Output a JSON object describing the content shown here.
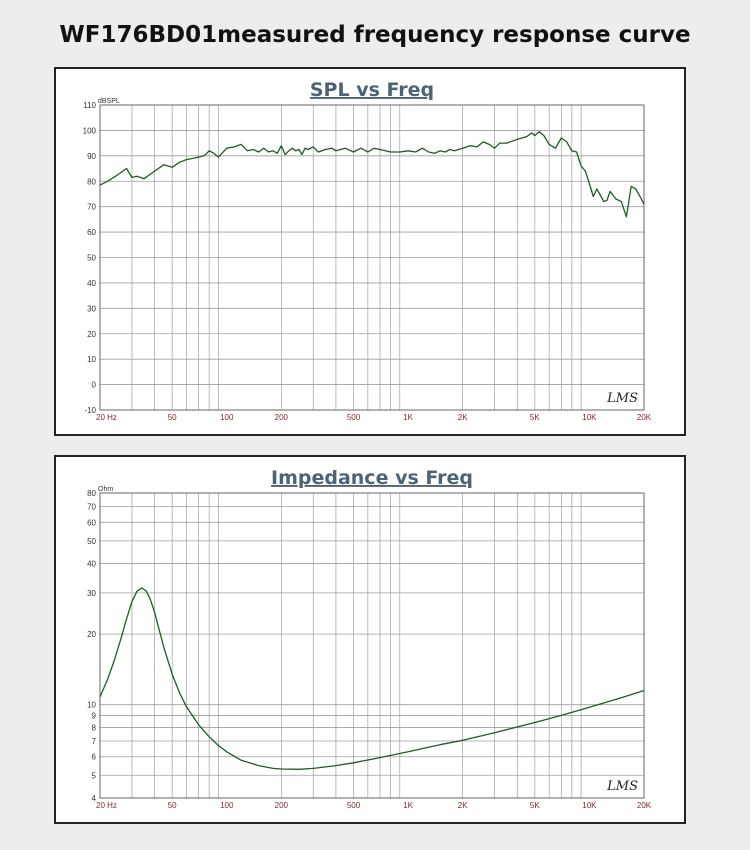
{
  "page_title": "WF176BD01measured frequency response curve",
  "colors": {
    "curve": "#1f5c24",
    "title": "#4f6377",
    "axis_label": "#7a2b2b",
    "grid": "#9e9e9e"
  },
  "chart_data": [
    {
      "type": "line",
      "title": "SPL vs Freq",
      "ylabel": "dBSPL",
      "xlabel": "",
      "xscale": "log",
      "xlim": [
        20,
        20000
      ],
      "ylim": [
        -10,
        110
      ],
      "x_ticks": [
        20,
        50,
        100,
        200,
        500,
        1000,
        2000,
        5000,
        10000,
        20000
      ],
      "x_tick_labels": [
        "20 Hz",
        "50",
        "100",
        "200",
        "500",
        "1K",
        "2K",
        "5K",
        "10K",
        "20K"
      ],
      "y_ticks": [
        -10,
        0,
        10,
        20,
        30,
        40,
        50,
        60,
        70,
        80,
        90,
        100,
        110
      ],
      "y_tick_labels": [
        "-10",
        "0",
        "10",
        "20",
        "30",
        "40",
        "50",
        "60",
        "70",
        "80",
        "90",
        "100",
        "110"
      ],
      "watermark": "LMS",
      "grid": true,
      "series": [
        {
          "x": [
            20,
            22,
            25,
            28,
            30,
            32,
            35,
            40,
            45,
            50,
            55,
            60,
            65,
            70,
            75,
            80,
            85,
            90,
            100,
            110,
            120,
            130,
            140,
            150,
            160,
            170,
            180,
            190,
            200,
            210,
            220,
            230,
            240,
            250,
            260,
            270,
            280,
            300,
            320,
            350,
            380,
            400,
            450,
            500,
            550,
            600,
            650,
            700,
            750,
            800,
            900,
            1000,
            1100,
            1200,
            1300,
            1400,
            1500,
            1600,
            1700,
            1800,
            2000,
            2200,
            2400,
            2600,
            2800,
            3000,
            3200,
            3500,
            4000,
            4500,
            4800,
            5000,
            5300,
            5600,
            6000,
            6500,
            7000,
            7500,
            8000,
            8500,
            9000,
            9500,
            10000,
            10500,
            11000,
            12000,
            12500,
            13000,
            14000,
            15000,
            16000,
            17000,
            18000,
            19000,
            20000
          ],
          "y": [
            78.5,
            80,
            82.5,
            85,
            81.5,
            82,
            81,
            84,
            86.5,
            85.5,
            87.5,
            88.5,
            89,
            89.5,
            90,
            92,
            91,
            89.5,
            93,
            93.5,
            94.5,
            92,
            92.5,
            91.5,
            93,
            91.5,
            92,
            91,
            94,
            90.5,
            92,
            93,
            92,
            92.5,
            90.5,
            93,
            92.5,
            93.5,
            91.5,
            92.5,
            93,
            92,
            93,
            91.5,
            93,
            91.5,
            93,
            92.5,
            92,
            91.5,
            91.5,
            92,
            91.5,
            93,
            91.5,
            91,
            92,
            91.5,
            92.5,
            92,
            93,
            94,
            93.5,
            95.5,
            94.5,
            93,
            95,
            95,
            96.5,
            97.5,
            99,
            98,
            99.5,
            98,
            94.5,
            93,
            97,
            95.5,
            92,
            91.5,
            86,
            84,
            79,
            74,
            77,
            72,
            72.5,
            76,
            73,
            72,
            66,
            78,
            77,
            74,
            71
          ]
        }
      ]
    },
    {
      "type": "line",
      "title": "Impedance vs Freq",
      "ylabel": "Ohm",
      "xlabel": "",
      "xscale": "log",
      "yscale": "log",
      "xlim": [
        20,
        20000
      ],
      "ylim": [
        4,
        80
      ],
      "x_ticks": [
        20,
        50,
        100,
        200,
        500,
        1000,
        2000,
        5000,
        10000,
        20000
      ],
      "x_tick_labels": [
        "20 Hz",
        "50",
        "100",
        "200",
        "500",
        "1K",
        "2K",
        "5K",
        "10K",
        "20K"
      ],
      "y_ticks": [
        4,
        5,
        6,
        7,
        8,
        9,
        10,
        20,
        30,
        40,
        50,
        60,
        70,
        80
      ],
      "y_tick_labels": [
        "4",
        "5",
        "6",
        "7",
        "8",
        "9",
        "10",
        "20",
        "30",
        "40",
        "50",
        "60",
        "70",
        "80"
      ],
      "watermark": "LMS",
      "grid": true,
      "series": [
        {
          "x": [
            20,
            22,
            24,
            26,
            28,
            30,
            32,
            34,
            36,
            38,
            40,
            42,
            45,
            50,
            55,
            60,
            70,
            80,
            90,
            100,
            120,
            150,
            180,
            200,
            250,
            300,
            400,
            500,
            700,
            1000,
            1500,
            2000,
            3000,
            5000,
            7000,
            10000,
            15000,
            20000
          ],
          "y": [
            10.8,
            12.8,
            15.5,
            19,
            23.2,
            27.5,
            30.5,
            31.5,
            30.5,
            28,
            24.8,
            21.5,
            17.5,
            13.5,
            11.2,
            9.8,
            8.2,
            7.3,
            6.7,
            6.3,
            5.8,
            5.5,
            5.35,
            5.32,
            5.3,
            5.35,
            5.5,
            5.65,
            5.95,
            6.3,
            6.75,
            7.05,
            7.6,
            8.4,
            9.0,
            9.75,
            10.7,
            11.5
          ]
        }
      ]
    }
  ]
}
